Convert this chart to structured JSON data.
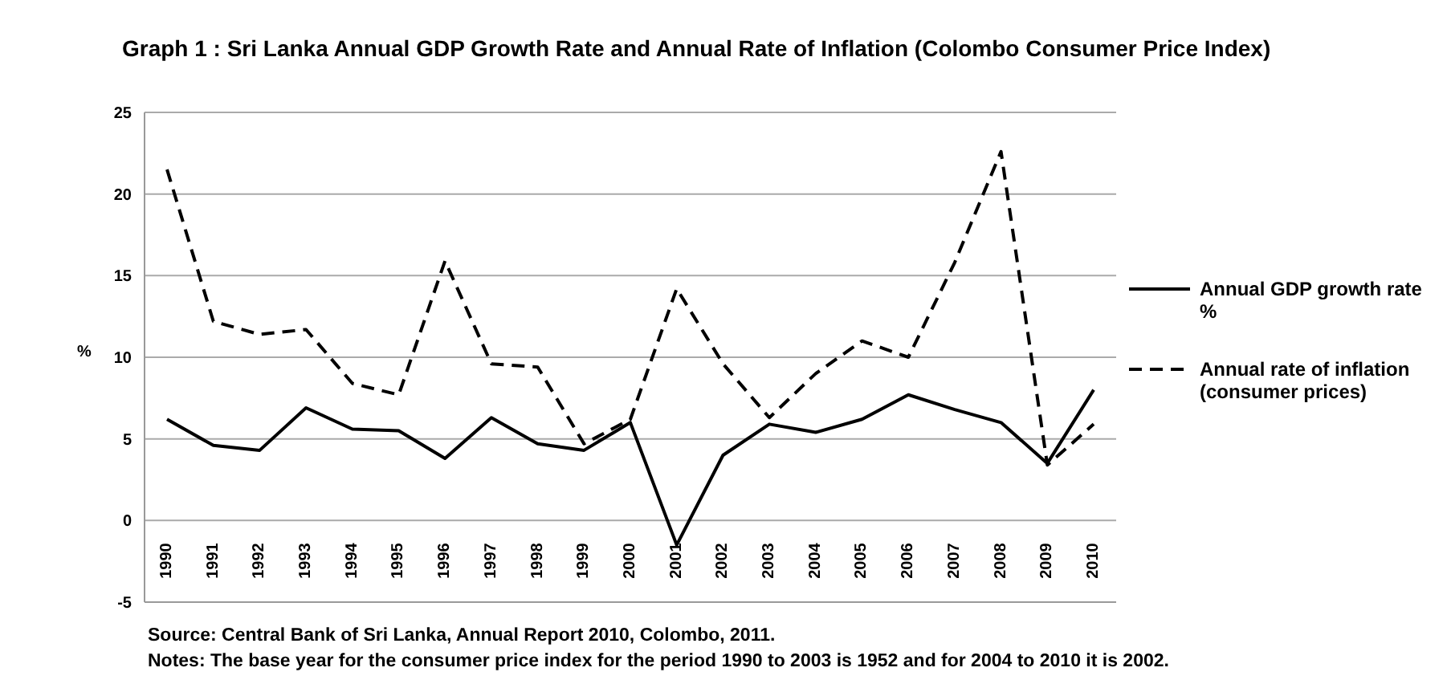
{
  "chart_data": {
    "type": "line",
    "title": "Graph 1 : Sri Lanka Annual GDP Growth Rate and Annual Rate of Inflation (Colombo Consumer Price Index)",
    "ylabel": "%",
    "categories": [
      "1990",
      "1991",
      "1992",
      "1993",
      "1994",
      "1995",
      "1996",
      "1997",
      "1998",
      "1999",
      "2000",
      "2001",
      "2002",
      "2003",
      "2004",
      "2005",
      "2006",
      "2007",
      "2008",
      "2009",
      "2010"
    ],
    "series": [
      {
        "name": "Annual GDP growth rate %",
        "color": "#000000",
        "line_style": "solid",
        "values": [
          6.2,
          4.6,
          4.3,
          6.9,
          5.6,
          5.5,
          3.8,
          6.3,
          4.7,
          4.3,
          6.0,
          -1.5,
          4.0,
          5.9,
          5.4,
          6.2,
          7.7,
          6.8,
          6.0,
          3.5,
          8.0
        ]
      },
      {
        "name": "Annual rate of inflation (consumer prices)",
        "color": "#000000",
        "line_style": "dashed",
        "values": [
          21.5,
          12.2,
          11.4,
          11.7,
          8.4,
          7.7,
          15.9,
          9.6,
          9.4,
          4.7,
          6.2,
          14.2,
          9.6,
          6.3,
          9.0,
          11.0,
          10.0,
          15.8,
          22.6,
          3.4,
          5.9
        ]
      }
    ],
    "ylim": [
      -5,
      25
    ],
    "yticks": [
      -5,
      0,
      5,
      10,
      15,
      20,
      25
    ],
    "grid": "y",
    "legend": "right",
    "marker": "none",
    "annotations": [
      "Source: Central Bank of Sri Lanka, Annual Report 2010, Colombo, 2011.",
      "Notes: The base year for the consumer price index for the period 1990 to 2003 is 1952 and for 2004 to 2010 it is 2002."
    ]
  }
}
